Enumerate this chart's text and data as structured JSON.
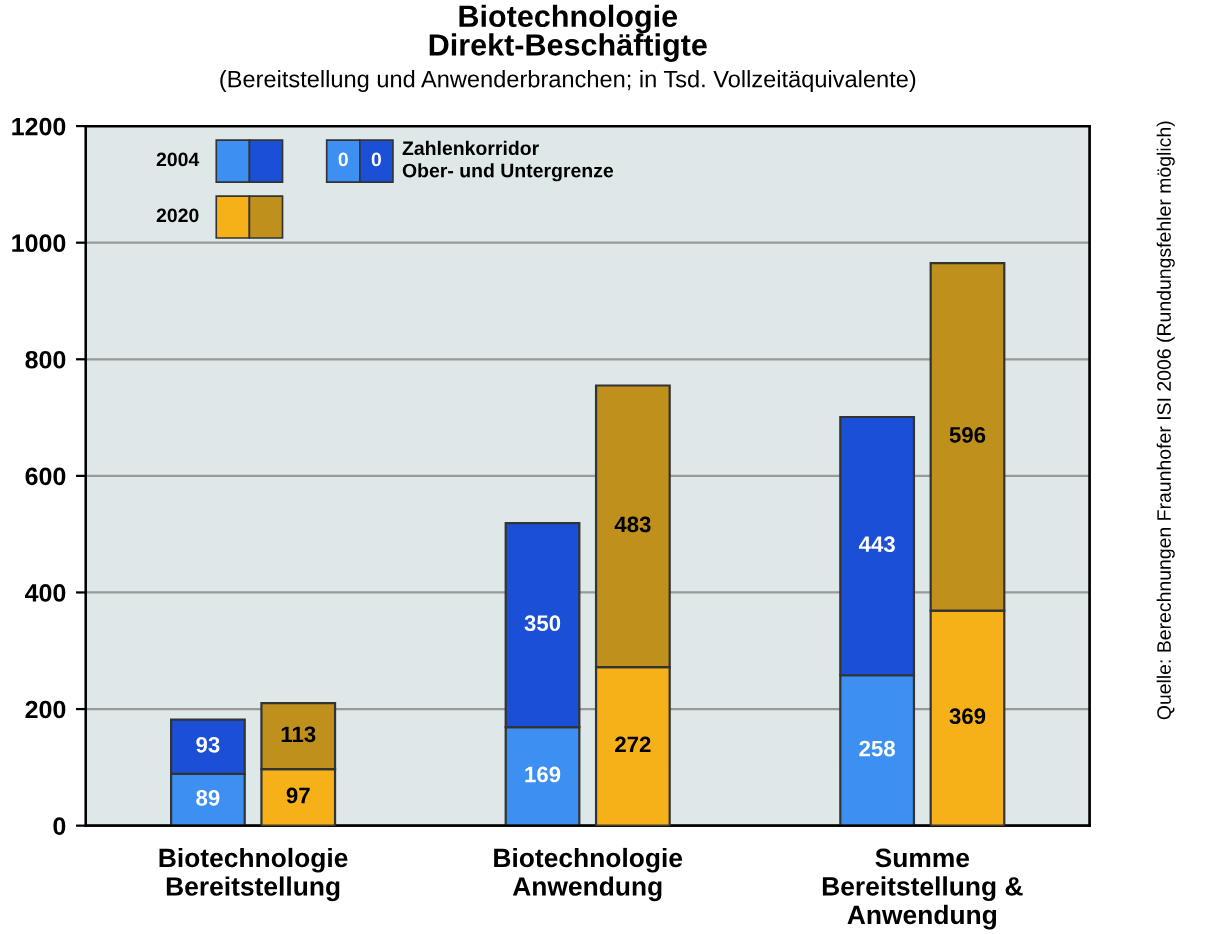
{
  "chart_data": [
    {
      "type": "bar",
      "title": "Biotechnologie\nDirekt-Beschäftigte",
      "subtitle": "(Bereitstellung und Anwenderbranchen; in Tsd. Vollzeitäquivalente)",
      "categories": [
        "Biotechnologie\nBereitstellung",
        "Biotechnologie\nAnwendung",
        "Summe\nBereitstellung &\nAnwendung"
      ],
      "stacked": true,
      "series": [
        {
          "name": "2004",
          "color": "#3d8ff2",
          "values": [
            89,
            169,
            258
          ]
        },
        {
          "color": "#1a4fd6",
          "values": [
            93,
            350,
            443
          ]
        }
      ],
      "ylim": [
        0,
        1200
      ],
      "yticks": [
        0,
        200,
        400,
        600,
        800,
        1000,
        1200
      ],
      "grid": "y",
      "data_labels": true,
      "legend": "top left",
      "annotations": [
        "0",
        "0",
        "Zahlenkorridor\nOber- und Untergrenze",
        "Quelle: Berechnungen Fraunhofer ISI 2006 (Rundungsfehler möglich)"
      ]
    },
    {
      "type": "bar",
      "categories": [
        null,
        null,
        null
      ],
      "stacked": true,
      "series": [
        {
          "name": "2020",
          "color": "#f6b119",
          "values": [
            97,
            272,
            369
          ]
        },
        {
          "color": "#c0901c",
          "values": [
            113,
            483,
            596
          ]
        }
      ],
      "ylim": [
        0,
        1200
      ],
      "data_labels": true,
      "legend": "top left"
    }
  ]
}
